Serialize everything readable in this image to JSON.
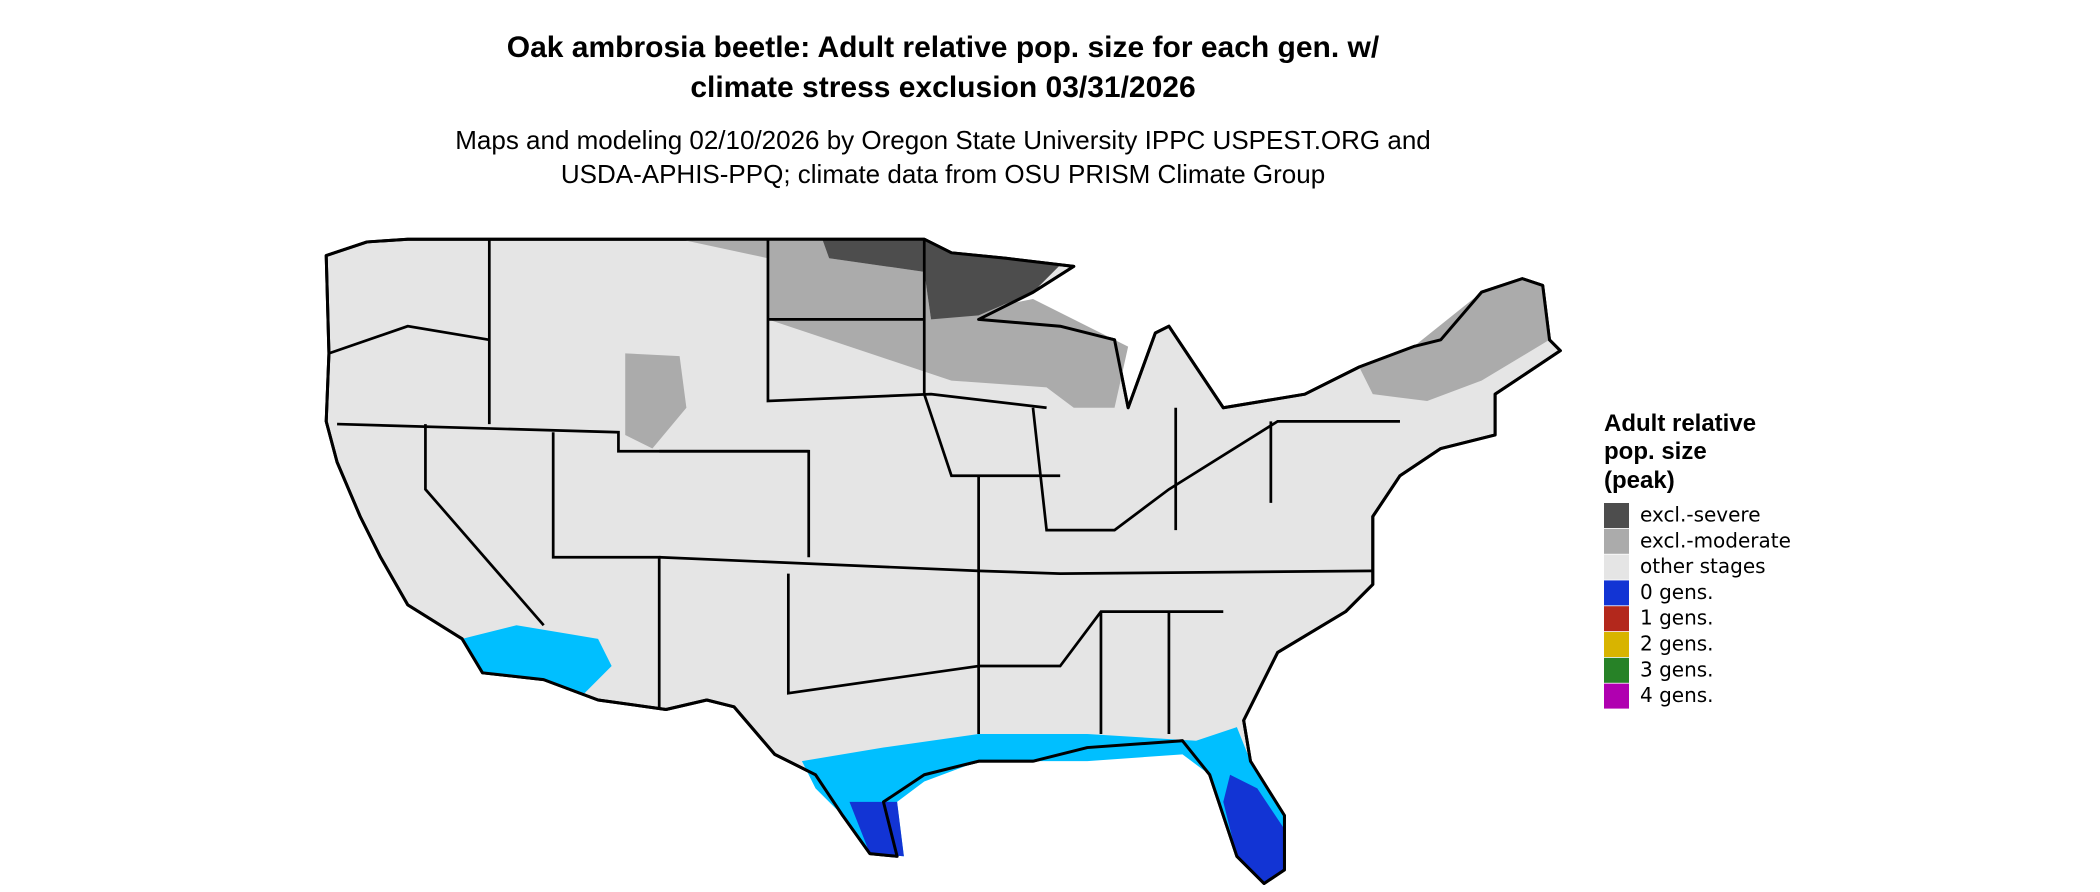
{
  "title_lines": [
    "Oak ambrosia beetle: Adult relative pop. size for each gen. w/",
    "climate stress exclusion 03/31/2026"
  ],
  "subtitle_lines": [
    "Maps and modeling 02/10/2026 by Oregon State University IPPC USPEST.ORG and",
    "USDA-APHIS-PPQ; climate data from OSU PRISM Climate Group"
  ],
  "legend": {
    "title_lines": [
      "Adult relative",
      "pop. size",
      "(peak)"
    ],
    "items": [
      {
        "label": "excl.-severe",
        "color": "#4d4d4d"
      },
      {
        "label": "excl.-moderate",
        "color": "#ababab"
      },
      {
        "label": "other stages",
        "color": "#e5e5e5"
      },
      {
        "label": "0 gens.",
        "color": "#1234d4"
      },
      {
        "label": "1 gens.",
        "color": "#b3281c"
      },
      {
        "label": "2 gens.",
        "color": "#d8b400"
      },
      {
        "label": "3 gens.",
        "color": "#278227"
      },
      {
        "label": "4 gens.",
        "color": "#b000b0"
      }
    ]
  }
}
